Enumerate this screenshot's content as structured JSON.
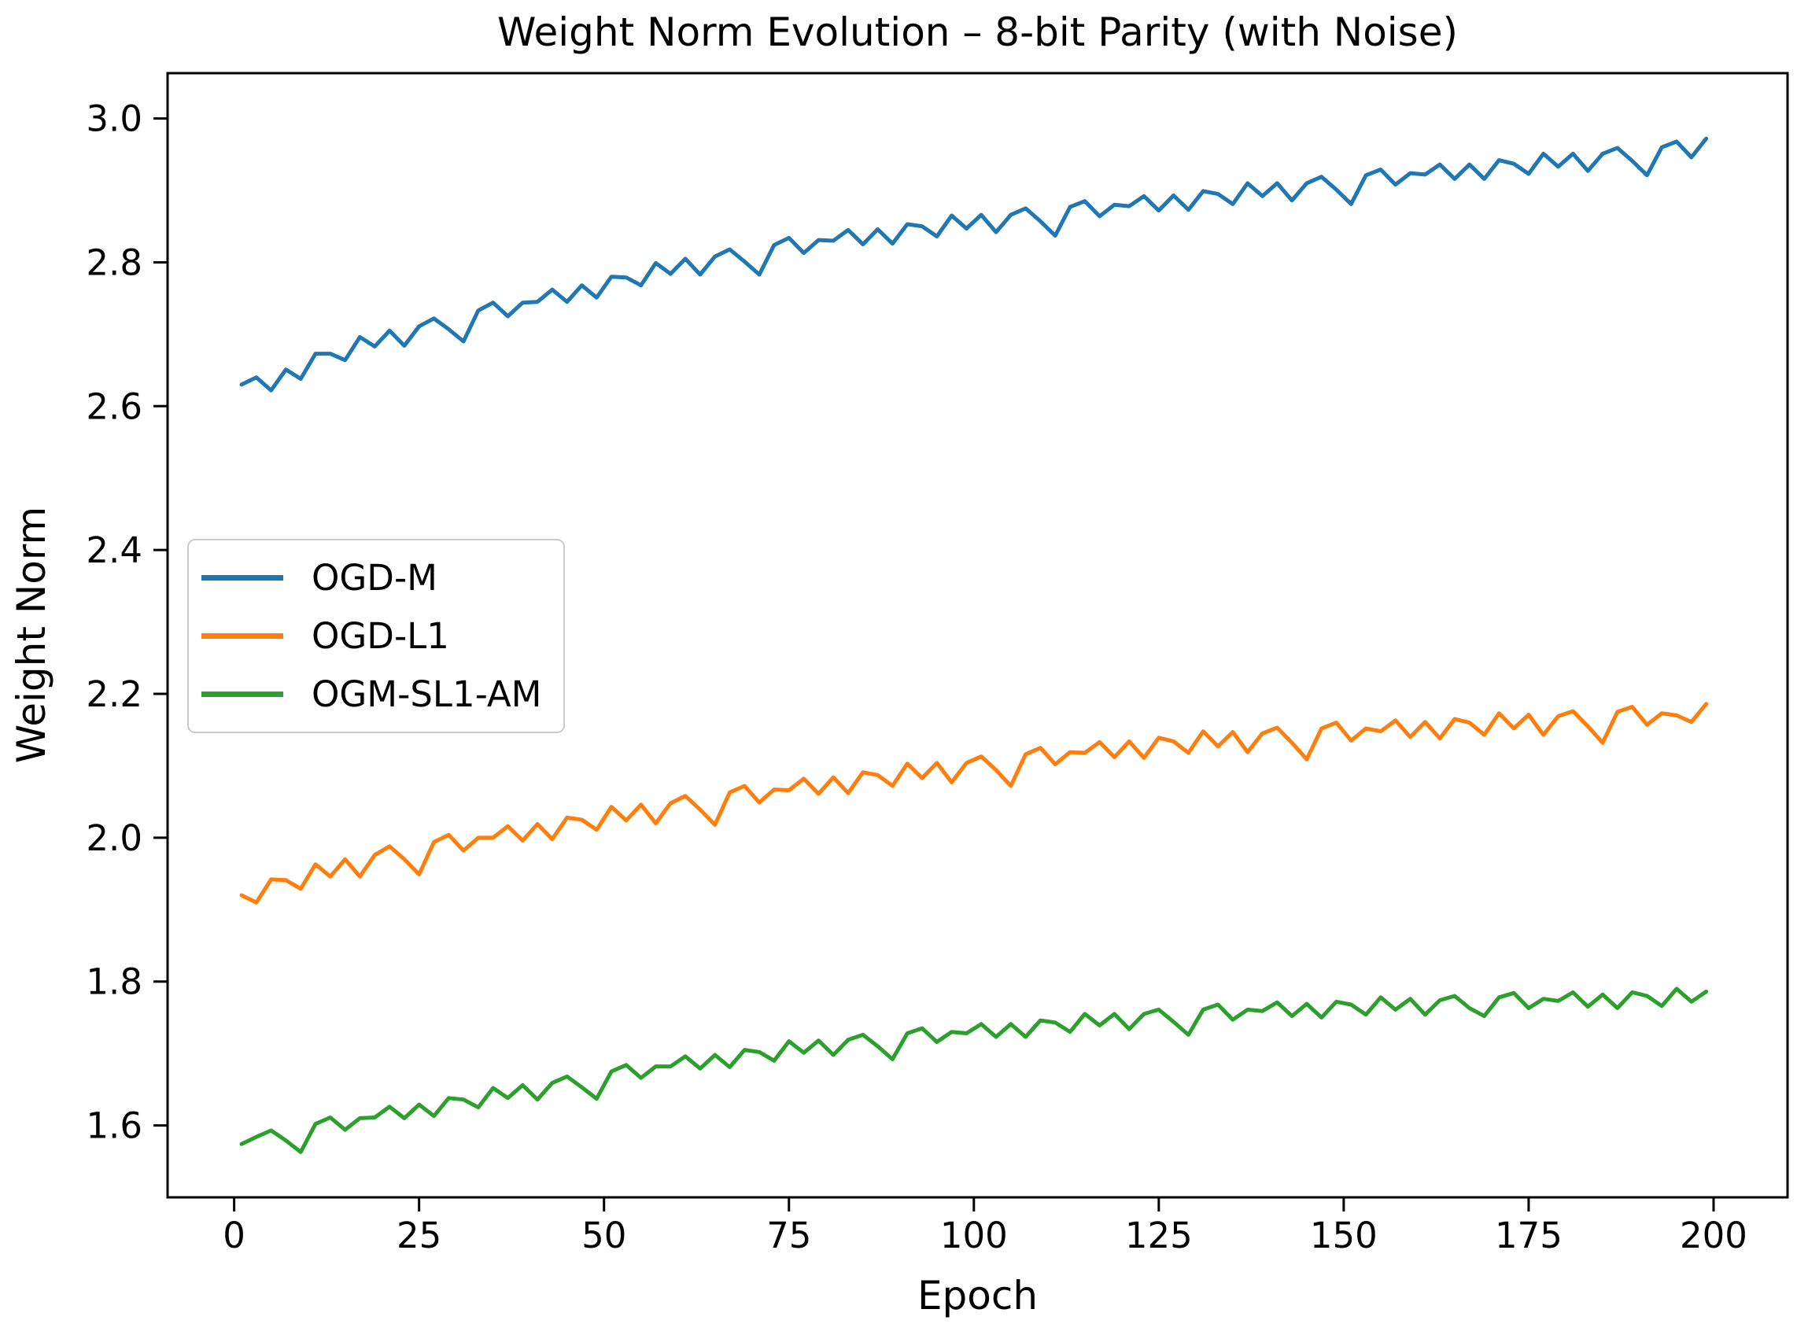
{
  "chart_data": {
    "type": "line",
    "title": "Weight Norm Evolution – 8-bit Parity (with Noise)",
    "xlabel": "Epoch",
    "ylabel": "Weight Norm",
    "xlim": [
      -9,
      210
    ],
    "ylim": [
      1.5,
      3.063
    ],
    "xticks": [
      0,
      25,
      50,
      75,
      100,
      125,
      150,
      175,
      200
    ],
    "yticks": [
      1.6,
      1.8,
      2.0,
      2.2,
      2.4,
      2.6,
      2.8,
      3.0
    ],
    "grid": false,
    "legend_position": "center-left",
    "x": [
      1,
      3,
      5,
      7,
      9,
      11,
      13,
      15,
      17,
      19,
      21,
      23,
      25,
      27,
      29,
      31,
      33,
      35,
      37,
      39,
      41,
      43,
      45,
      47,
      49,
      51,
      53,
      55,
      57,
      59,
      61,
      63,
      65,
      67,
      69,
      71,
      73,
      75,
      77,
      79,
      81,
      83,
      85,
      87,
      89,
      91,
      93,
      95,
      97,
      99,
      101,
      103,
      105,
      107,
      109,
      111,
      113,
      115,
      117,
      119,
      121,
      123,
      125,
      127,
      129,
      131,
      133,
      135,
      137,
      139,
      141,
      143,
      145,
      147,
      149,
      151,
      153,
      155,
      157,
      159,
      161,
      163,
      165,
      167,
      169,
      171,
      173,
      175,
      177,
      179,
      181,
      183,
      185,
      187,
      189,
      191,
      193,
      195,
      197,
      199
    ],
    "series": [
      {
        "name": "OGD-M",
        "color": "#1f77b4",
        "values": [
          2.63,
          2.64,
          2.622,
          2.651,
          2.638,
          2.673,
          2.673,
          2.664,
          2.696,
          2.683,
          2.705,
          2.684,
          2.711,
          2.722,
          2.707,
          2.69,
          2.733,
          2.744,
          2.725,
          2.744,
          2.745,
          2.762,
          2.745,
          2.768,
          2.751,
          2.78,
          2.779,
          2.768,
          2.799,
          2.784,
          2.805,
          2.783,
          2.808,
          2.818,
          2.801,
          2.783,
          2.824,
          2.834,
          2.813,
          2.831,
          2.83,
          2.845,
          2.825,
          2.846,
          2.826,
          2.853,
          2.85,
          2.836,
          2.865,
          2.847,
          2.866,
          2.842,
          2.866,
          2.875,
          2.857,
          2.837,
          2.877,
          2.885,
          2.864,
          2.88,
          2.878,
          2.892,
          2.872,
          2.893,
          2.873,
          2.899,
          2.895,
          2.881,
          2.91,
          2.892,
          2.91,
          2.886,
          2.91,
          2.919,
          2.901,
          2.881,
          2.921,
          2.929,
          2.908,
          2.924,
          2.922,
          2.936,
          2.916,
          2.936,
          2.916,
          2.942,
          2.937,
          2.923,
          2.951,
          2.933,
          2.951,
          2.927,
          2.951,
          2.959,
          2.941,
          2.921,
          2.96,
          2.968,
          2.946,
          2.972
        ]
      },
      {
        "name": "OGD-L1",
        "color": "#ff7f0e",
        "values": [
          1.92,
          1.91,
          1.942,
          1.941,
          1.929,
          1.963,
          1.946,
          1.97,
          1.946,
          1.976,
          1.988,
          1.97,
          1.949,
          1.994,
          2.004,
          1.982,
          2.0,
          2.0,
          2.016,
          1.996,
          2.019,
          1.998,
          2.028,
          2.025,
          2.011,
          2.043,
          2.024,
          2.046,
          2.02,
          2.048,
          2.058,
          2.039,
          2.018,
          2.063,
          2.072,
          2.049,
          2.067,
          2.066,
          2.082,
          2.061,
          2.084,
          2.062,
          2.091,
          2.087,
          2.072,
          2.103,
          2.083,
          2.104,
          2.077,
          2.104,
          2.113,
          2.094,
          2.072,
          2.116,
          2.125,
          2.102,
          2.119,
          2.118,
          2.133,
          2.112,
          2.134,
          2.111,
          2.139,
          2.134,
          2.118,
          2.148,
          2.127,
          2.147,
          2.119,
          2.145,
          2.153,
          2.132,
          2.109,
          2.152,
          2.16,
          2.135,
          2.152,
          2.148,
          2.163,
          2.14,
          2.161,
          2.138,
          2.165,
          2.16,
          2.143,
          2.173,
          2.152,
          2.171,
          2.143,
          2.169,
          2.176,
          2.155,
          2.132,
          2.175,
          2.182,
          2.157,
          2.173,
          2.17,
          2.161,
          2.186
        ]
      },
      {
        "name": "OGM-SL1-AM",
        "color": "#2ca02c",
        "values": [
          1.574,
          1.584,
          1.593,
          1.579,
          1.563,
          1.602,
          1.611,
          1.594,
          1.61,
          1.611,
          1.626,
          1.61,
          1.629,
          1.613,
          1.638,
          1.636,
          1.625,
          1.652,
          1.638,
          1.656,
          1.636,
          1.659,
          1.668,
          1.653,
          1.637,
          1.675,
          1.684,
          1.666,
          1.682,
          1.682,
          1.696,
          1.679,
          1.698,
          1.681,
          1.705,
          1.702,
          1.69,
          1.717,
          1.701,
          1.718,
          1.698,
          1.719,
          1.726,
          1.71,
          1.692,
          1.728,
          1.735,
          1.716,
          1.73,
          1.728,
          1.741,
          1.723,
          1.741,
          1.723,
          1.746,
          1.743,
          1.73,
          1.755,
          1.739,
          1.755,
          1.734,
          1.755,
          1.761,
          1.744,
          1.726,
          1.761,
          1.768,
          1.747,
          1.761,
          1.759,
          1.771,
          1.752,
          1.769,
          1.75,
          1.772,
          1.768,
          1.754,
          1.778,
          1.761,
          1.776,
          1.754,
          1.774,
          1.78,
          1.763,
          1.752,
          1.778,
          1.784,
          1.763,
          1.776,
          1.773,
          1.785,
          1.765,
          1.782,
          1.763,
          1.785,
          1.78,
          1.766,
          1.79,
          1.772,
          1.786
        ]
      }
    ]
  }
}
